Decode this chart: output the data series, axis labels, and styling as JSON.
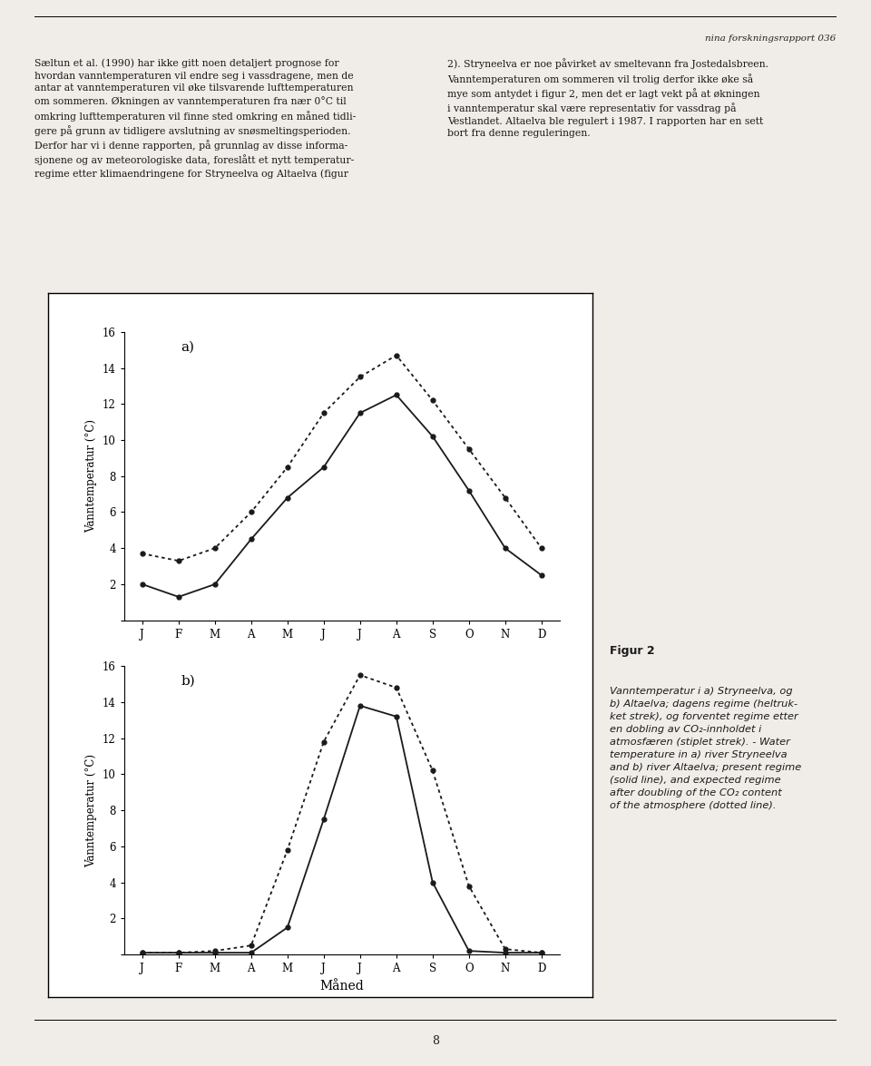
{
  "months": [
    "J",
    "F",
    "M",
    "A",
    "M",
    "J",
    "J",
    "A",
    "S",
    "O",
    "N",
    "D"
  ],
  "stryneelva_solid": [
    2.0,
    1.3,
    2.0,
    4.5,
    6.8,
    8.5,
    11.5,
    12.5,
    10.2,
    7.2,
    4.0,
    2.5
  ],
  "stryneelva_dotted": [
    3.7,
    3.3,
    4.0,
    6.0,
    8.5,
    11.5,
    13.5,
    14.7,
    12.2,
    9.5,
    6.8,
    4.0
  ],
  "altaelva_solid": [
    0.1,
    0.1,
    0.1,
    0.1,
    1.5,
    7.5,
    13.8,
    13.2,
    4.0,
    0.2,
    0.1,
    0.1
  ],
  "altaelva_dotted": [
    0.1,
    0.1,
    0.2,
    0.5,
    5.8,
    11.8,
    15.5,
    14.8,
    10.2,
    3.8,
    0.3,
    0.1
  ],
  "ylabel": "Vanntemperatur (°C)",
  "xlabel": "Måned",
  "ylim": [
    0,
    16
  ],
  "yticks": [
    0,
    2,
    4,
    6,
    8,
    10,
    12,
    14,
    16
  ],
  "label_a": "a)",
  "label_b": "b)",
  "line_color": "#1a1a1a",
  "page_color": "#f0ede8",
  "white": "#ffffff",
  "figur_title": "Figur 2",
  "figur_caption": "Vanntemperatur i a) Stryneelva, og\nb) Altaelva; dagens regime (heltruk-\nket strek), og forventet regime etter\nen dobling av CO₂-innholdet i\natmosfæren (stiplet strek). - Water\ntemperature in a) river Stryneelva\nand b) river Altaelva; present regime\n(solid line), and expected regime\nafter doubling of the CO₂ content\nof the atmosphere (dotted line).",
  "header_text": "nina forskningsrapport 036",
  "footer_text": "8",
  "left_col": "Sæltun et al. (1990) har ikke gitt noen detaljert prognose for\nhvordan vanntemperaturen vil endre seg i vassdragene, men de\nantar at vanntemperaturen vil øke tilsvarende lufttemperaturen\nom sommeren. Økningen av vanntemperaturen fra nær 0°C til\nomkring lufttemperaturen vil finne sted omkring en måned tidli-\ngere på grunn av tidligere avslutning av snøsmeltingsperioden.\nDerfor har vi i denne rapporten, på grunnlag av disse informa-\nsjonene og av meteorologiske data, foreslått et nytt temperatur-\nregime etter klimaendringene for Stryneelva og Altaelva (figur",
  "right_col": "2). Stryneelva er noe påvirket av smeltevann fra Jostedalsbreen.\nVanntemperaturen om sommeren vil trolig derfor ikke øke så\nmye som antydet i figur 2, men det er lagt vekt på at økningen\ni vanntemperatur skal være representativ for vassdrag på\nVestlandet. Altaelva ble regulert i 1987. I rapporten har en sett\nbort fra denne reguleringen."
}
